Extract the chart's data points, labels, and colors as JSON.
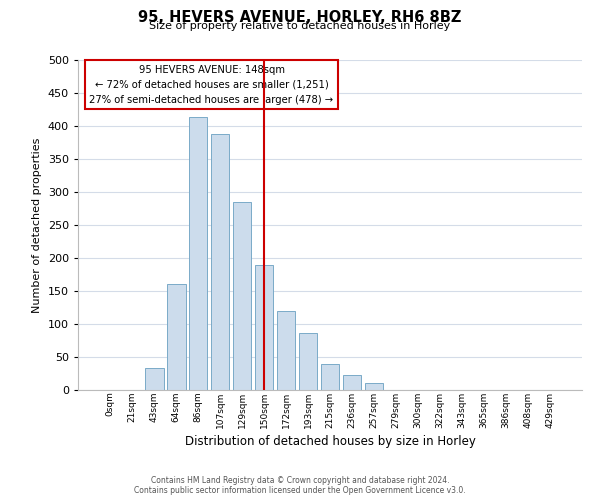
{
  "title": "95, HEVERS AVENUE, HORLEY, RH6 8BZ",
  "subtitle": "Size of property relative to detached houses in Horley",
  "xlabel": "Distribution of detached houses by size in Horley",
  "ylabel": "Number of detached properties",
  "bar_labels": [
    "0sqm",
    "21sqm",
    "43sqm",
    "64sqm",
    "86sqm",
    "107sqm",
    "129sqm",
    "150sqm",
    "172sqm",
    "193sqm",
    "215sqm",
    "236sqm",
    "257sqm",
    "279sqm",
    "300sqm",
    "322sqm",
    "343sqm",
    "365sqm",
    "386sqm",
    "408sqm",
    "429sqm"
  ],
  "bar_heights": [
    0,
    0,
    33,
    160,
    413,
    388,
    285,
    190,
    120,
    86,
    40,
    22,
    11,
    0,
    0,
    0,
    0,
    0,
    0,
    0,
    0
  ],
  "bar_color": "#ccdcec",
  "bar_edge_color": "#7aaac8",
  "marker_bin_index": 7,
  "marker_line_color": "#cc0000",
  "ylim": [
    0,
    500
  ],
  "yticks": [
    0,
    50,
    100,
    150,
    200,
    250,
    300,
    350,
    400,
    450,
    500
  ],
  "annotation_title": "95 HEVERS AVENUE: 148sqm",
  "annotation_line1": "← 72% of detached houses are smaller (1,251)",
  "annotation_line2": "27% of semi-detached houses are larger (478) →",
  "annotation_box_color": "#ffffff",
  "annotation_box_edge": "#cc0000",
  "footer1": "Contains HM Land Registry data © Crown copyright and database right 2024.",
  "footer2": "Contains public sector information licensed under the Open Government Licence v3.0.",
  "background_color": "#ffffff",
  "grid_color": "#d4dce8"
}
